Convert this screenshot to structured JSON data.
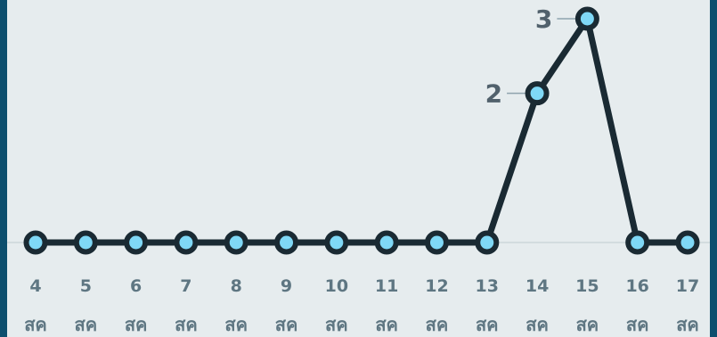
{
  "chart_data": {
    "type": "line",
    "title": "",
    "xlabel": "",
    "ylabel": "",
    "categories": [
      {
        "day": "4",
        "month": "สค"
      },
      {
        "day": "5",
        "month": "สค"
      },
      {
        "day": "6",
        "month": "สค"
      },
      {
        "day": "7",
        "month": "สค"
      },
      {
        "day": "8",
        "month": "สค"
      },
      {
        "day": "9",
        "month": "สค"
      },
      {
        "day": "10",
        "month": "สค"
      },
      {
        "day": "11",
        "month": "สค"
      },
      {
        "day": "12",
        "month": "สค"
      },
      {
        "day": "13",
        "month": "สค"
      },
      {
        "day": "14",
        "month": "สค"
      },
      {
        "day": "15",
        "month": "สค"
      },
      {
        "day": "16",
        "month": "สค"
      },
      {
        "day": "17",
        "month": "สค"
      }
    ],
    "series": [
      {
        "values": [
          0,
          0,
          0,
          0,
          0,
          0,
          0,
          0,
          0,
          0,
          2,
          3,
          0,
          0
        ],
        "data_labels": [
          "",
          "",
          "",
          "",
          "",
          "",
          "",
          "",
          "",
          "",
          "2",
          "3",
          "",
          ""
        ]
      }
    ],
    "ylim": [
      0,
      3
    ],
    "grid": false,
    "legend": "none",
    "colors": {
      "background": "#e6ecee",
      "frame": "#0d4f6e",
      "line": "#1a2a33",
      "point_fill": "#7fd8f6",
      "tick_text": "#5e7682",
      "label_text": "#51616c",
      "baseline": "#d3dcdf"
    }
  }
}
